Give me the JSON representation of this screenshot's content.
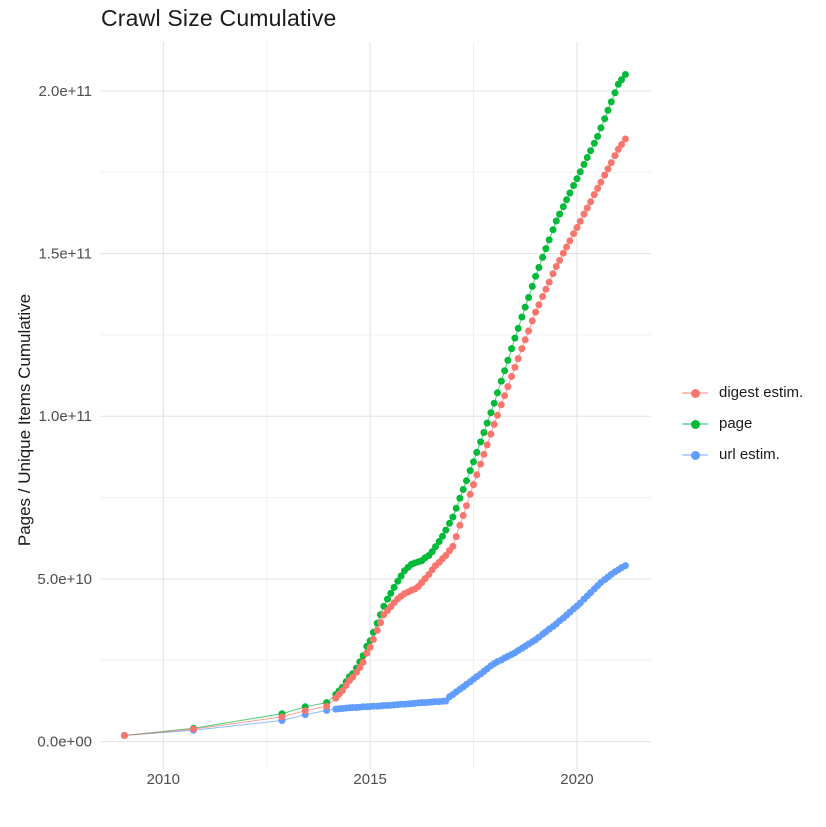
{
  "title": "Crawl Size Cumulative",
  "axes": {
    "y_label": "Pages / Unique Items Cumulative",
    "x_tick_labels": [
      "2010",
      "2015",
      "2020"
    ],
    "y_tick_labels": [
      "0.0e+00",
      "5.0e+10",
      "1.0e+11",
      "1.5e+11",
      "2.0e+11"
    ]
  },
  "legend": {
    "items": [
      {
        "label": "digest estim.",
        "color": "#F8766D"
      },
      {
        "label": "page",
        "color": "#00BA38"
      },
      {
        "label": "url estim.",
        "color": "#619CFF"
      }
    ]
  },
  "chart_data": {
    "type": "line",
    "title": "Crawl Size Cumulative",
    "xlabel": "",
    "ylabel": "Pages / Unique Items Cumulative",
    "grid": true,
    "legend_position": "right",
    "xlim": [
      2008.47,
      2021.79
    ],
    "ylim_e10": [
      -0.84,
      21.5
    ],
    "y_unit_note": "y values are in units of 1e10 pages (multiply y_e10 by 10^10)",
    "x_major_ticks": [
      2010,
      2015,
      2020
    ],
    "x_minor_ticks": [
      2012.5,
      2017.5
    ],
    "y_major_ticks_e10": [
      0,
      5,
      10,
      15,
      20
    ],
    "y_major_tick_labels": [
      "0.0e+00",
      "5.0e+10",
      "1.0e+11",
      "1.5e+11",
      "2.0e+11"
    ],
    "y_minor_ticks_e10": [
      2.5,
      7.5,
      12.5,
      17.5
    ],
    "x": [
      2009.06,
      2010.73,
      2012.87,
      2013.43,
      2013.95,
      2014.17,
      2014.25,
      2014.33,
      2014.42,
      2014.5,
      2014.58,
      2014.67,
      2014.75,
      2014.83,
      2014.92,
      2015,
      2015.08,
      2015.17,
      2015.25,
      2015.33,
      2015.42,
      2015.5,
      2015.58,
      2015.67,
      2015.75,
      2015.83,
      2015.92,
      2016,
      2016.08,
      2016.17,
      2016.25,
      2016.33,
      2016.42,
      2016.5,
      2016.58,
      2016.67,
      2016.75,
      2016.83,
      2016.92,
      2017,
      2017.08,
      2017.17,
      2017.25,
      2017.33,
      2017.42,
      2017.5,
      2017.58,
      2017.67,
      2017.75,
      2017.83,
      2017.92,
      2018,
      2018.08,
      2018.17,
      2018.25,
      2018.33,
      2018.42,
      2018.5,
      2018.58,
      2018.67,
      2018.75,
      2018.83,
      2018.92,
      2019,
      2019.08,
      2019.17,
      2019.25,
      2019.33,
      2019.42,
      2019.5,
      2019.58,
      2019.67,
      2019.75,
      2019.83,
      2019.92,
      2020,
      2020.08,
      2020.17,
      2020.25,
      2020.33,
      2020.42,
      2020.5,
      2020.58,
      2020.67,
      2020.75,
      2020.83,
      2020.92,
      2021,
      2021.08,
      2021.17
    ],
    "series": [
      {
        "name": "digest estim.",
        "color": "#F8766D",
        "y_e10": [
          0.19,
          0.39,
          0.76,
          0.95,
          1.09,
          1.34,
          1.46,
          1.57,
          1.73,
          1.88,
          1.98,
          2.13,
          2.28,
          2.44,
          2.72,
          2.9,
          3.14,
          3.42,
          3.66,
          3.9,
          4.03,
          4.15,
          4.27,
          4.39,
          4.47,
          4.55,
          4.6,
          4.65,
          4.69,
          4.77,
          4.89,
          5.01,
          5.14,
          5.28,
          5.41,
          5.51,
          5.62,
          5.72,
          5.87,
          6.0,
          6.3,
          6.65,
          6.95,
          7.25,
          7.6,
          7.9,
          8.2,
          8.53,
          8.83,
          9.12,
          9.45,
          9.75,
          10.03,
          10.35,
          10.63,
          10.91,
          11.22,
          11.5,
          11.77,
          12.08,
          12.35,
          12.62,
          12.93,
          13.2,
          13.42,
          13.68,
          13.9,
          14.12,
          14.38,
          14.6,
          14.79,
          15.01,
          15.2,
          15.39,
          15.61,
          15.8,
          15.99,
          16.21,
          16.4,
          16.59,
          16.81,
          17.0,
          17.19,
          17.41,
          17.6,
          17.79,
          18.01,
          18.2,
          18.35,
          18.52
        ]
      },
      {
        "name": "page",
        "color": "#00BA38",
        "y_e10": [
          0.19,
          0.41,
          0.86,
          1.07,
          1.2,
          1.45,
          1.56,
          1.67,
          1.84,
          1.99,
          2.09,
          2.26,
          2.45,
          2.64,
          2.93,
          3.1,
          3.36,
          3.64,
          3.9,
          4.16,
          4.38,
          4.56,
          4.74,
          4.93,
          5.09,
          5.25,
          5.36,
          5.45,
          5.49,
          5.53,
          5.56,
          5.65,
          5.72,
          5.84,
          5.99,
          6.15,
          6.31,
          6.5,
          6.71,
          6.9,
          7.17,
          7.48,
          7.75,
          8.02,
          8.33,
          8.6,
          8.89,
          9.21,
          9.5,
          9.79,
          10.11,
          10.4,
          10.72,
          11.08,
          11.4,
          11.72,
          12.08,
          12.4,
          12.7,
          13.05,
          13.35,
          13.65,
          13.99,
          14.3,
          14.57,
          14.88,
          15.15,
          15.42,
          15.73,
          16.0,
          16.21,
          16.44,
          16.65,
          16.86,
          17.09,
          17.3,
          17.51,
          17.74,
          17.95,
          18.16,
          18.39,
          18.6,
          18.86,
          19.14,
          19.4,
          19.66,
          19.94,
          20.2,
          20.34,
          20.5
        ]
      },
      {
        "name": "url estim.",
        "color": "#619CFF",
        "y_e10": [
          0.19,
          0.35,
          0.65,
          0.83,
          0.96,
          1.0,
          1.01,
          1.02,
          1.03,
          1.04,
          1.05,
          1.05,
          1.06,
          1.07,
          1.07,
          1.08,
          1.09,
          1.09,
          1.1,
          1.11,
          1.11,
          1.12,
          1.13,
          1.14,
          1.15,
          1.15,
          1.16,
          1.17,
          1.18,
          1.19,
          1.2,
          1.2,
          1.21,
          1.22,
          1.23,
          1.23,
          1.24,
          1.25,
          1.38,
          1.45,
          1.53,
          1.61,
          1.68,
          1.76,
          1.84,
          1.92,
          2.0,
          2.08,
          2.16,
          2.24,
          2.33,
          2.4,
          2.46,
          2.51,
          2.57,
          2.62,
          2.68,
          2.73,
          2.8,
          2.87,
          2.93,
          3.0,
          3.07,
          3.13,
          3.21,
          3.3,
          3.38,
          3.46,
          3.54,
          3.62,
          3.71,
          3.8,
          3.89,
          3.98,
          4.08,
          4.17,
          4.26,
          4.38,
          4.48,
          4.58,
          4.69,
          4.79,
          4.89,
          4.98,
          5.06,
          5.14,
          5.22,
          5.28,
          5.35,
          5.41
        ]
      }
    ],
    "draw_order": [
      "url estim.",
      "page",
      "digest estim."
    ]
  }
}
